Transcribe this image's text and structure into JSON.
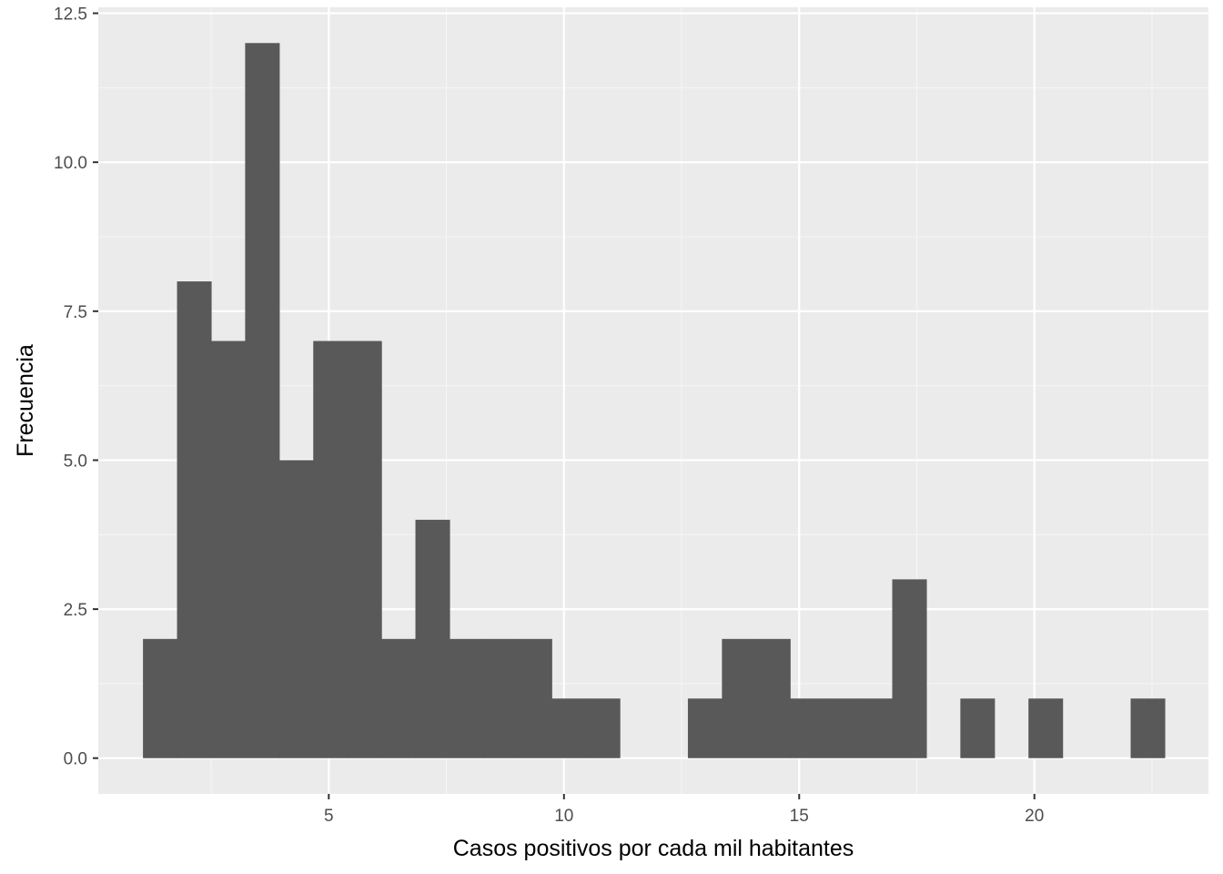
{
  "chart_data": {
    "type": "bar",
    "subtype": "histogram",
    "title": "",
    "xlabel": "Casos positivos por cada mil habitantes",
    "ylabel": "Frecuencia",
    "xlim": [
      0.1,
      23.7
    ],
    "ylim": [
      -0.6,
      12.6
    ],
    "x_ticks": [
      5,
      10,
      15,
      20
    ],
    "x_tick_labels": [
      "5",
      "10",
      "15",
      "20"
    ],
    "y_ticks": [
      0,
      2.5,
      5,
      7.5,
      10,
      12.5
    ],
    "y_tick_labels": [
      "0.0",
      "2.5",
      "5.0",
      "7.5",
      "10.0",
      "12.5"
    ],
    "bin_width": 0.724,
    "bin_start": 1.05,
    "counts": [
      2,
      8,
      7,
      12,
      5,
      7,
      7,
      2,
      4,
      2,
      2,
      2,
      1,
      1,
      0,
      0,
      1,
      2,
      2,
      1,
      1,
      1,
      3,
      0,
      1,
      0,
      1,
      0,
      0,
      1
    ],
    "grid": true,
    "legend": "none",
    "colors": {
      "bar": "#595959",
      "panel": "#ebebeb",
      "grid_major": "#ffffff",
      "grid_minor": "#f5f5f5",
      "tick_text": "#4d4d4d",
      "tick_mark": "#333333"
    }
  }
}
